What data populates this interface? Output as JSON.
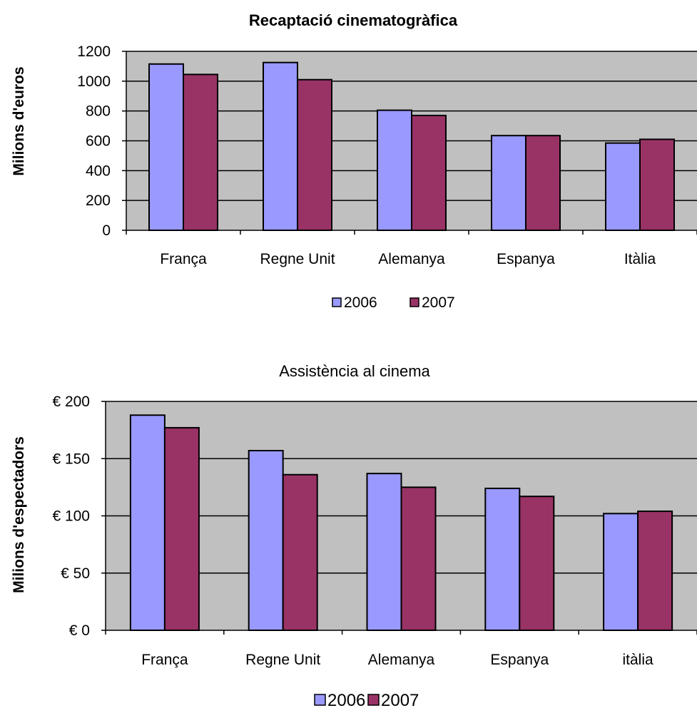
{
  "colors": {
    "s2006": "#9999FF",
    "s2007": "#993366",
    "plot_bg": "#C0C0C0",
    "grid": "#000000"
  },
  "chart_data": [
    {
      "type": "bar",
      "title": "Recaptació cinematogràfica",
      "ylabel": "Milions d'euros",
      "xlabel": "",
      "categories": [
        "França",
        "Regne Unit",
        "Alemanya",
        "Espanya",
        "Itàlia"
      ],
      "series": [
        {
          "name": "2006",
          "values": [
            1115,
            1125,
            805,
            635,
            585
          ]
        },
        {
          "name": "2007",
          "values": [
            1045,
            1010,
            770,
            635,
            610
          ]
        }
      ],
      "ylim": [
        0,
        1200
      ],
      "yticks": [
        0,
        200,
        400,
        600,
        800,
        1000,
        1200
      ],
      "ytick_labels": [
        "0",
        "200",
        "400",
        "600",
        "800",
        "1000",
        "1200"
      ],
      "grid": true,
      "legend": "bottom"
    },
    {
      "type": "bar",
      "title": "Assistència al cinema",
      "ylabel": "Milions d'espectadors",
      "xlabel": "",
      "categories": [
        "França",
        "Regne Unit",
        "Alemanya",
        "Espanya",
        "itàlia"
      ],
      "series": [
        {
          "name": "2006",
          "values": [
            188,
            157,
            137,
            124,
            102
          ]
        },
        {
          "name": "2007",
          "values": [
            177,
            136,
            125,
            117,
            104
          ]
        }
      ],
      "ylim": [
        0,
        200
      ],
      "yticks": [
        0,
        50,
        100,
        150,
        200
      ],
      "ytick_labels": [
        "€ 0",
        "€ 50",
        "€ 100",
        "€ 150",
        "€ 200"
      ],
      "grid": true,
      "legend": "bottom"
    }
  ]
}
